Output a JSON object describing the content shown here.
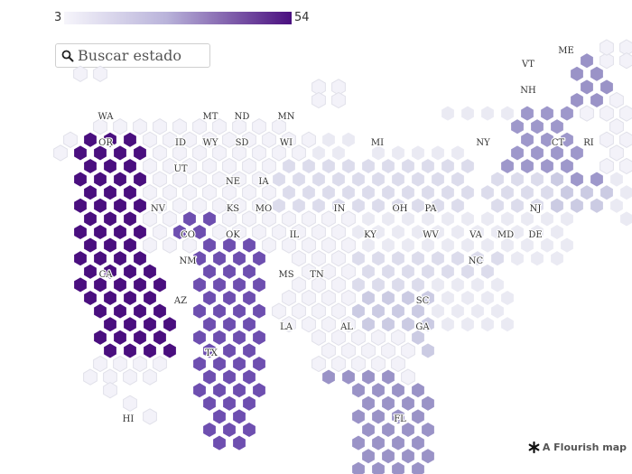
{
  "legend": {
    "min": "3",
    "max": "54",
    "color_low": "#f6f5fb",
    "color_high": "#4a0f7f"
  },
  "search": {
    "placeholder": "Buscar estado"
  },
  "credit": {
    "text": "A Flourish map",
    "icon": "flourish-asterisk-icon"
  },
  "map": {
    "type": "hex-cartogram",
    "colors": {
      "c3": "#f3f2f9",
      "c10": "#eaeaf3",
      "c16": "#dcdcec",
      "c19": "#cbcbe3",
      "c28": "#9e98cb",
      "c30": "#9a93c7",
      "c40": "#6e4fb0",
      "c54": "#4a0f7f",
      "tile_stroke": "#ffffff",
      "outline": "#e1e1ea"
    },
    "states": [
      {
        "abbr": "WA"
      },
      {
        "abbr": "MT"
      },
      {
        "abbr": "ND"
      },
      {
        "abbr": "MN"
      },
      {
        "abbr": "ME"
      },
      {
        "abbr": "VT"
      },
      {
        "abbr": "NH"
      },
      {
        "abbr": "OR"
      },
      {
        "abbr": "ID"
      },
      {
        "abbr": "WY"
      },
      {
        "abbr": "SD"
      },
      {
        "abbr": "WI"
      },
      {
        "abbr": "MI"
      },
      {
        "abbr": "NY"
      },
      {
        "abbr": "CT"
      },
      {
        "abbr": "RI"
      },
      {
        "abbr": "UT"
      },
      {
        "abbr": "NE"
      },
      {
        "abbr": "IA"
      },
      {
        "abbr": "NV"
      },
      {
        "abbr": "KS"
      },
      {
        "abbr": "MO"
      },
      {
        "abbr": "IN"
      },
      {
        "abbr": "OH"
      },
      {
        "abbr": "PA"
      },
      {
        "abbr": "NJ"
      },
      {
        "abbr": "CO"
      },
      {
        "abbr": "OK"
      },
      {
        "abbr": "IL"
      },
      {
        "abbr": "KY"
      },
      {
        "abbr": "WV"
      },
      {
        "abbr": "VA"
      },
      {
        "abbr": "MD"
      },
      {
        "abbr": "DE"
      },
      {
        "abbr": "CA"
      },
      {
        "abbr": "NM"
      },
      {
        "abbr": "NC"
      },
      {
        "abbr": "MS"
      },
      {
        "abbr": "TN"
      },
      {
        "abbr": "AZ"
      },
      {
        "abbr": "SC"
      },
      {
        "abbr": "LA"
      },
      {
        "abbr": "AL"
      },
      {
        "abbr": "GA"
      },
      {
        "abbr": "TX"
      },
      {
        "abbr": "HI"
      },
      {
        "abbr": "FL"
      }
    ]
  }
}
